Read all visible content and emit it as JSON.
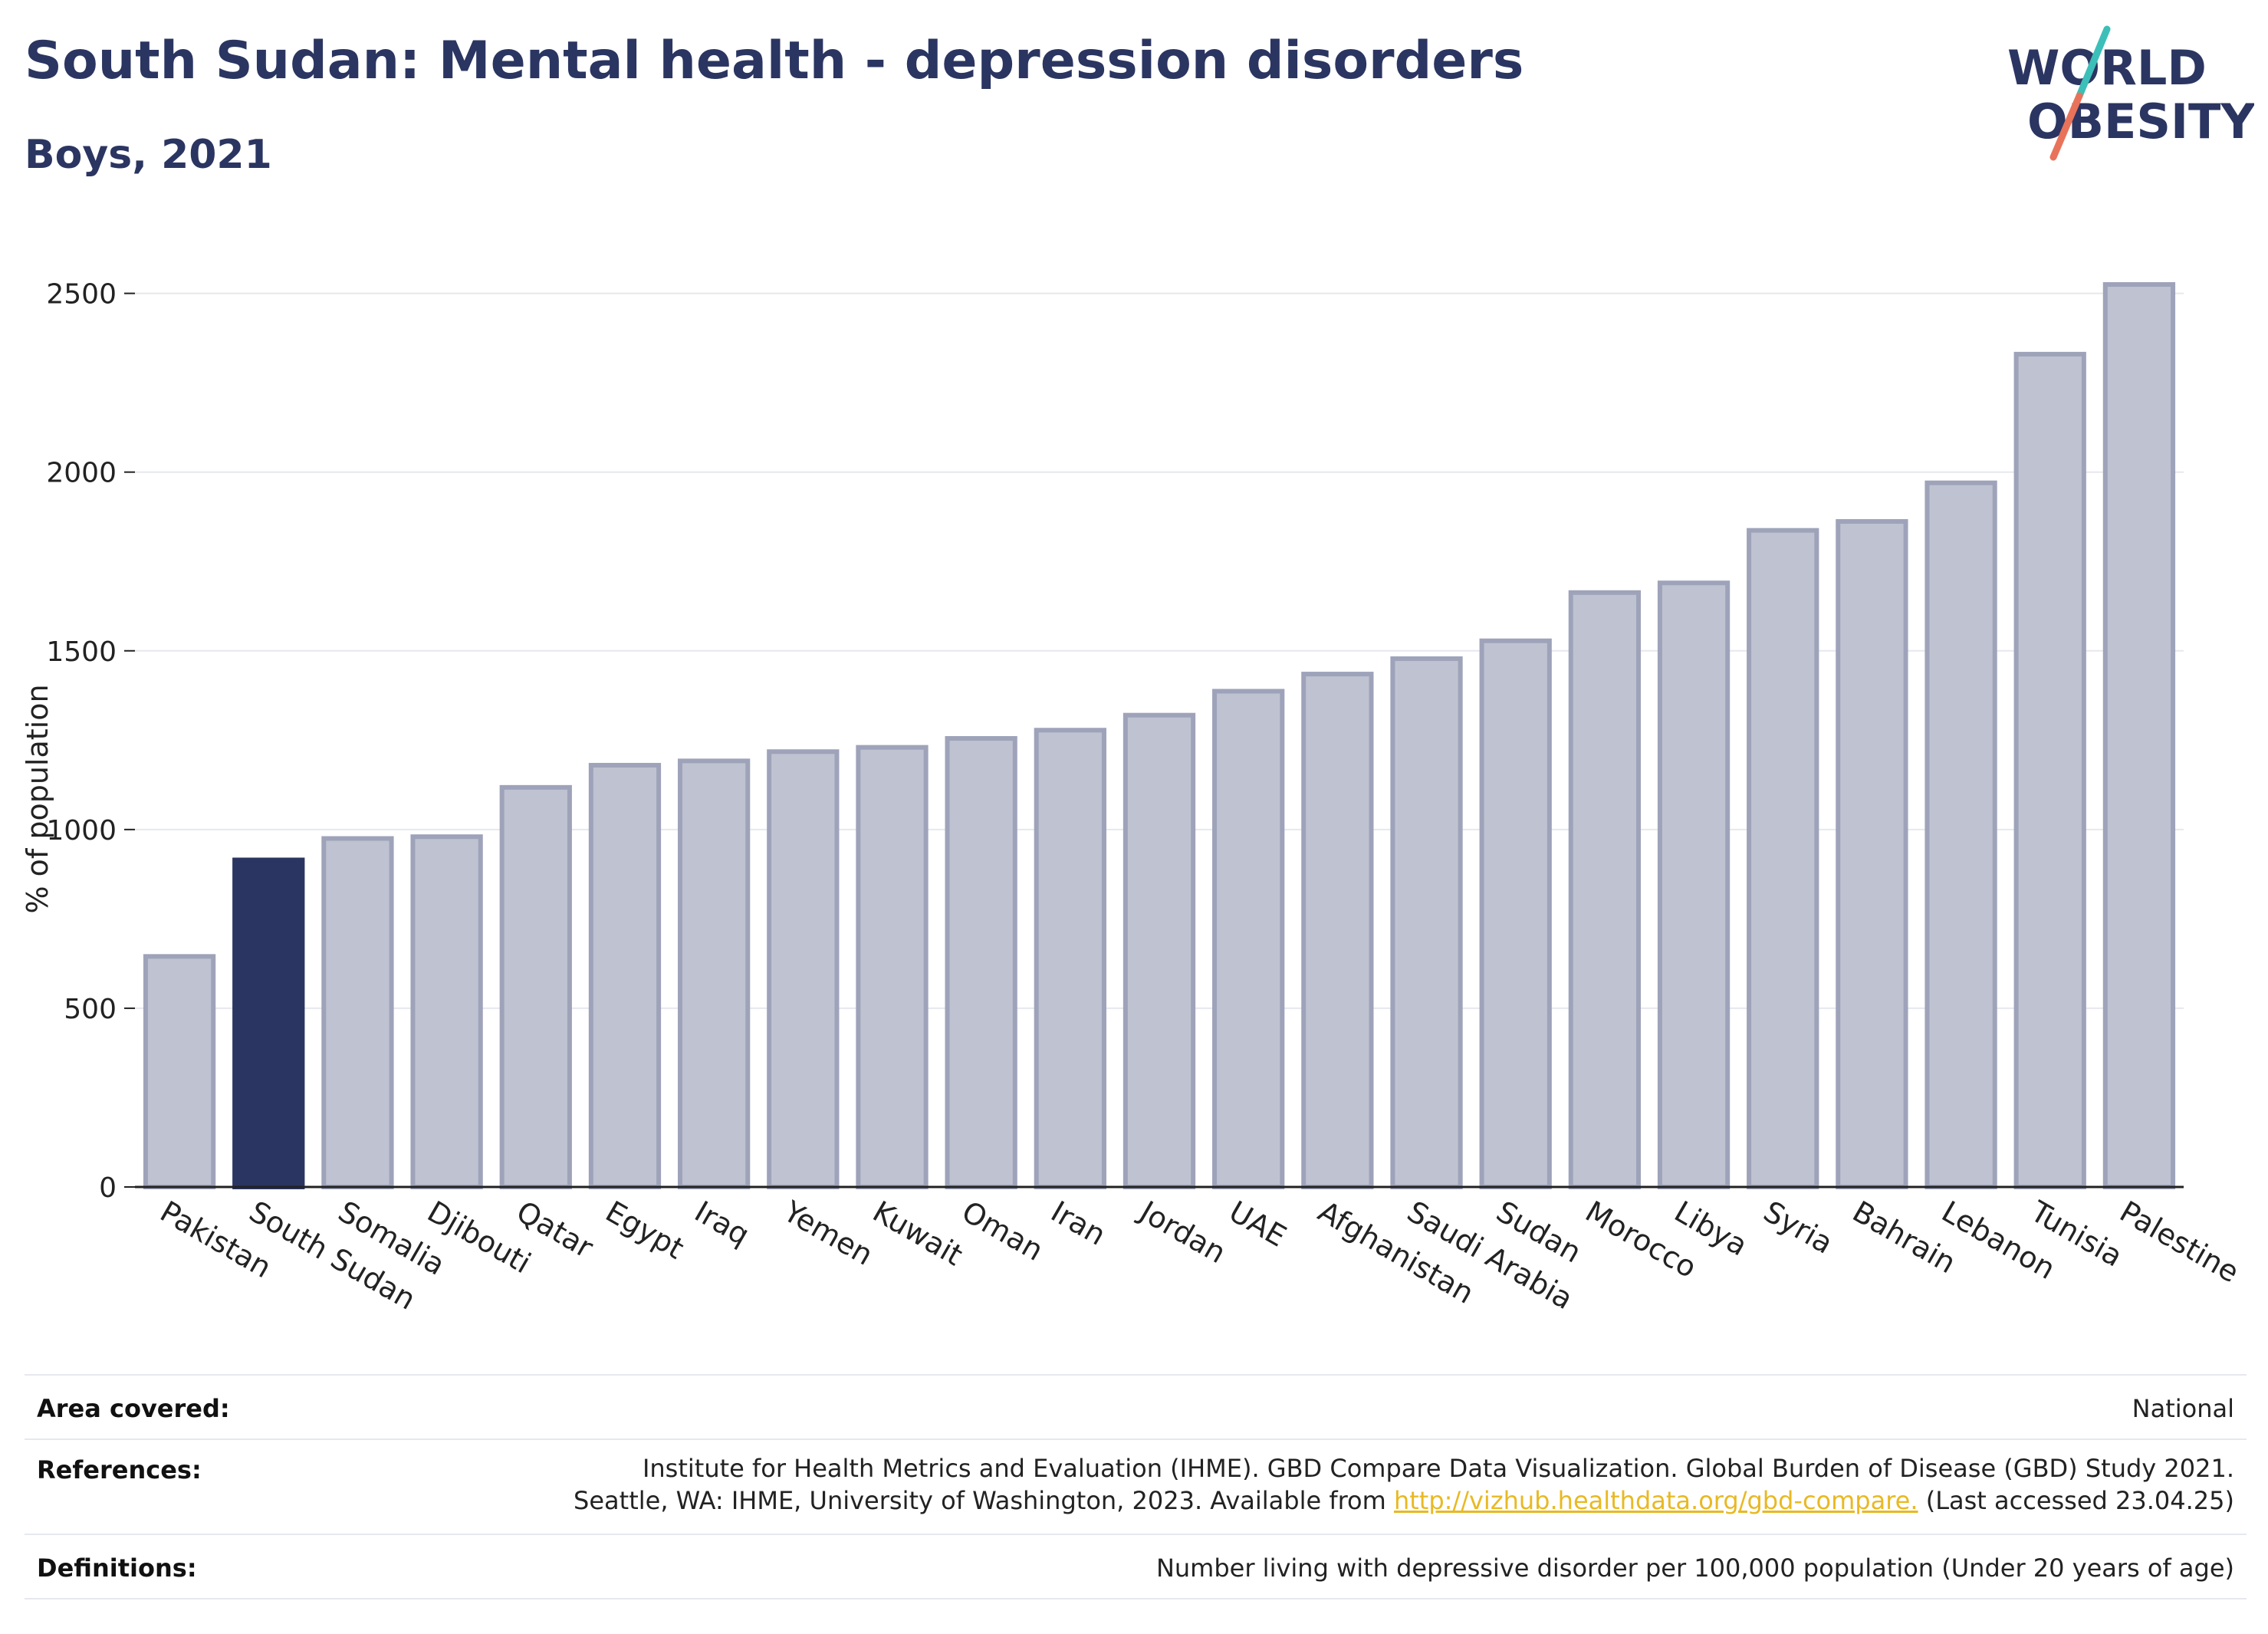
{
  "header": {
    "title": "South Sudan: Mental health - depression disorders",
    "subtitle": "Boys, 2021"
  },
  "logo": {
    "line1": "WORLD",
    "line2": "OBESITY",
    "slash_colors": [
      "#3cbfb8",
      "#e8735a"
    ]
  },
  "chart_data": {
    "type": "bar",
    "ylabel": "% of population",
    "ylim": [
      0,
      2600
    ],
    "yticks": [
      0,
      500,
      1000,
      1500,
      2000,
      2500
    ],
    "grid": true,
    "highlight": "South Sudan",
    "colors": {
      "bar": "#bfc2d0",
      "bar_border": "#9ea3ba",
      "highlight": "#2b3561"
    },
    "categories": [
      "Pakistan",
      "South Sudan",
      "Somalia",
      "Djibouti",
      "Qatar",
      "Egypt",
      "Iraq",
      "Yemen",
      "Kuwait",
      "Oman",
      "Iran",
      "Jordan",
      "UAE",
      "Afghanistan",
      "Saudi Arabia",
      "Sudan",
      "Morocco",
      "Libya",
      "Syria",
      "Bahrain",
      "Lebanon",
      "Tunisia",
      "Palestine"
    ],
    "values": [
      645,
      915,
      975,
      980,
      1118,
      1180,
      1192,
      1218,
      1230,
      1255,
      1278,
      1320,
      1387,
      1435,
      1478,
      1528,
      1663,
      1690,
      1837,
      1862,
      1970,
      2330,
      2525
    ]
  },
  "info": {
    "area_label": "Area covered:",
    "area_value": "National",
    "references_label": "References:",
    "references_line1": "Institute for Health Metrics and Evaluation (IHME). GBD Compare Data Visualization. Global Burden of Disease (GBD) Study 2021.",
    "references_line2_pre": "Seattle, WA: IHME, University of Washington, 2023. Available from ",
    "references_link": "http://vizhub.healthdata.org/gbd-compare.",
    "references_line2_post": " (Last accessed 23.04.25)",
    "definitions_label": "Definitions:",
    "definitions_value": "Number living with depressive disorder per 100,000 population (Under 20 years of age)"
  }
}
